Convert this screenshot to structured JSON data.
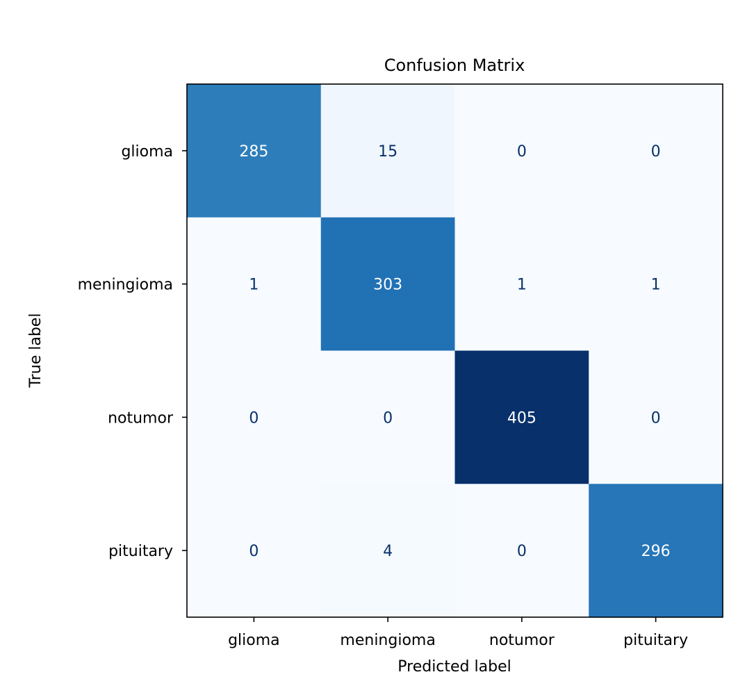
{
  "chart_data": {
    "type": "heatmap",
    "title": "Confusion Matrix",
    "xlabel": "Predicted label",
    "ylabel": "True label",
    "x_categories": [
      "glioma",
      "meningioma",
      "notumor",
      "pituitary"
    ],
    "y_categories": [
      "glioma",
      "meningioma",
      "notumor",
      "pituitary"
    ],
    "values": [
      [
        285,
        15,
        0,
        0
      ],
      [
        1,
        303,
        1,
        1
      ],
      [
        0,
        0,
        405,
        0
      ],
      [
        0,
        4,
        0,
        296
      ]
    ],
    "colormap": "Blues",
    "vmin": 0,
    "vmax": 405,
    "colorbar": false,
    "grid": false
  }
}
